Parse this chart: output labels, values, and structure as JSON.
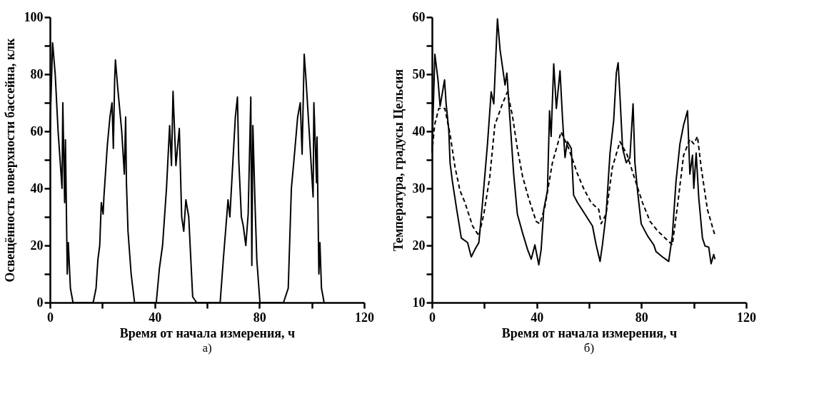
{
  "chart_data": [
    {
      "type": "line",
      "xlabel": "Время от начала измерения, ч",
      "ylabel": "Освещённость поверхности бассейна, клк",
      "annotations": [
        "а)"
      ],
      "xlim": [
        0,
        120
      ],
      "xticks": [
        0,
        {
          "value": 20,
          "label": null
        },
        40,
        {
          "value": 60,
          "label": null
        },
        80,
        {
          "value": 100,
          "label": null
        },
        120
      ],
      "ylim": [
        0,
        100
      ],
      "yticks": [
        0,
        {
          "value": 10,
          "label": null
        },
        20,
        {
          "value": 30,
          "label": null
        },
        40,
        {
          "value": 50,
          "label": null
        },
        60,
        {
          "value": 70,
          "label": null
        },
        80,
        {
          "value": 90,
          "label": null
        },
        100
      ],
      "grid": false,
      "legend": false,
      "marker": "none",
      "series": [
        {
          "color": "#000000",
          "line_style": "solid",
          "x": [
            0,
            1,
            2,
            3.1,
            4.6,
            4.9,
            5.6,
            5.9,
            6.6,
            7,
            7.8,
            8.8,
            16.5,
            17.6,
            18.3,
            19,
            19.6,
            20.3,
            20.6,
            21.9,
            22.9,
            23.7,
            24.2,
            24.7,
            25,
            25.8,
            27.4,
            28.4,
            28.9,
            29.2,
            29.8,
            31,
            32.3,
            40.6,
            41.8,
            43,
            44.5,
            45.7,
            46.4,
            47,
            48.1,
            49.4,
            50.3,
            51.1,
            51.9,
            53,
            53.8,
            54.5,
            56,
            65,
            66.2,
            67.5,
            68,
            68.7,
            70.2,
            70.8,
            71.6,
            72.1,
            73.1,
            73.8,
            74.8,
            75.7,
            76.7,
            77.1,
            77.5,
            78.3,
            79,
            80.2,
            89.2,
            91,
            92.2,
            93.2,
            94.6,
            95.6,
            96.3,
            97.1,
            97.8,
            99,
            100.5,
            100.8,
            101.8,
            102,
            102.7,
            103.1,
            103.7,
            104.7
          ],
          "values": [
            60,
            91,
            80,
            60,
            40,
            70,
            35,
            57,
            10,
            21,
            5,
            0,
            0,
            5,
            15,
            20,
            35,
            31,
            37,
            55,
            65,
            70,
            54,
            78,
            85,
            76,
            60,
            45,
            65,
            42,
            25,
            10,
            0,
            0,
            12,
            20,
            40,
            62,
            48,
            74,
            48,
            61,
            30,
            25,
            36,
            30,
            15,
            2,
            0,
            0,
            15,
            30,
            36,
            30,
            55,
            65,
            72,
            50,
            30,
            27,
            20,
            31,
            72,
            13,
            62,
            35,
            15,
            0,
            0,
            5,
            40,
            50,
            65,
            70,
            52,
            87,
            78,
            60,
            37,
            70,
            42,
            58,
            10,
            21,
            5,
            0
          ]
        }
      ]
    },
    {
      "type": "line",
      "xlabel": "Время от начала измерения, ч",
      "ylabel": "Температура, градусы Цельсия",
      "annotations": [
        "б)"
      ],
      "xlim": [
        0,
        120
      ],
      "xticks": [
        0,
        {
          "value": 20,
          "label": null
        },
        40,
        {
          "value": 60,
          "label": null
        },
        80,
        {
          "value": 100,
          "label": null
        },
        120
      ],
      "ylim": [
        10,
        60
      ],
      "yticks": [
        10,
        {
          "value": 15,
          "label": null
        },
        20,
        {
          "value": 25,
          "label": null
        },
        30,
        {
          "value": 35,
          "label": null
        },
        40,
        {
          "value": 45,
          "label": null
        },
        50,
        {
          "value": 55,
          "label": null
        },
        60
      ],
      "grid": false,
      "legend": false,
      "marker": "none",
      "series": [
        {
          "color": "#000000",
          "line_style": "solid",
          "x": [
            0,
            1.1,
            2.3,
            3.1,
            4.8,
            5.4,
            6.4,
            6.9,
            7.8,
            9.3,
            11.2,
            13.6,
            15,
            16.4,
            17.9,
            19.3,
            21.2,
            22.6,
            23.6,
            25,
            26,
            27.9,
            28.6,
            29.8,
            31.2,
            32.6,
            34.6,
            36.5,
            37.9,
            39.3,
            40.8,
            41.7,
            42.7,
            44.1,
            44.9,
            45.5,
            46.5,
            47.5,
            48.9,
            49.9,
            50.8,
            51.7,
            53.2,
            54.1,
            55.6,
            58.4,
            61.3,
            62.7,
            64.2,
            65.1,
            66.5,
            68,
            69.4,
            70.4,
            71.1,
            71.8,
            72.8,
            74.2,
            75.6,
            76.8,
            77.5,
            78.5,
            79.9,
            82.3,
            84.7,
            85.6,
            88,
            90.4,
            91.8,
            93.2,
            94.7,
            96.1,
            97.6,
            98.5,
            99.5,
            100,
            100.9,
            101.9,
            103.3,
            104.3,
            105.7,
            106.6,
            107.6,
            108.1
          ],
          "values": [
            36.6,
            53.5,
            49,
            44.4,
            49,
            44.8,
            40.3,
            34.5,
            31.2,
            26.7,
            21.3,
            20.5,
            18,
            19.3,
            20.5,
            27.5,
            37.8,
            46.9,
            44.8,
            59.7,
            54.3,
            48.1,
            50.2,
            41.9,
            32.5,
            25.5,
            22.2,
            19.3,
            17.6,
            20.1,
            16.6,
            19.3,
            26.3,
            29.6,
            43.6,
            39.1,
            51.8,
            44,
            50.6,
            41.9,
            35.4,
            38.2,
            37,
            28.8,
            27.5,
            25.5,
            23.4,
            20.1,
            17.2,
            20.1,
            25.5,
            36.2,
            41.9,
            50.2,
            52,
            46.1,
            37,
            34.5,
            35.4,
            44.8,
            34.5,
            29.6,
            23.8,
            21.7,
            20.1,
            18.9,
            18,
            17.2,
            21.7,
            31.2,
            37.8,
            41.1,
            43.6,
            32.5,
            35.8,
            30,
            36.2,
            28.3,
            21.3,
            19.9,
            19.7,
            16.8,
            18.4,
            17.6
          ]
        },
        {
          "color": "#000000",
          "line_style": "dashed",
          "x": [
            0,
            1,
            2.6,
            4.9,
            6.9,
            8.8,
            10.7,
            12.6,
            15.5,
            17.9,
            19.8,
            22.1,
            24,
            26.9,
            28.8,
            30.7,
            32.6,
            34.6,
            36.9,
            39.8,
            41.2,
            43.1,
            46,
            49.3,
            52.2,
            55.6,
            57.9,
            60.8,
            63.7,
            64.6,
            66.5,
            68.9,
            71.8,
            74.6,
            77.5,
            80.4,
            83.3,
            86.1,
            89,
            91.8,
            93.7,
            96.1,
            98.5,
            100,
            101.4,
            102.8,
            105.2,
            108.1
          ],
          "values": [
            36.2,
            41.1,
            44,
            44,
            39.5,
            33.7,
            29.6,
            27.5,
            23.4,
            21.7,
            25.5,
            32.1,
            41.1,
            44.8,
            46.9,
            42.8,
            37,
            32.1,
            28.3,
            24.2,
            23.8,
            26.7,
            34.5,
            39.9,
            37,
            32.5,
            30,
            27.5,
            26.3,
            23.8,
            25.5,
            33.7,
            38.2,
            35.8,
            31.6,
            27.5,
            24.2,
            22.6,
            21.3,
            20.1,
            26.7,
            35.8,
            38.6,
            37.8,
            39.1,
            33.7,
            26.3,
            21.7
          ]
        }
      ]
    }
  ]
}
